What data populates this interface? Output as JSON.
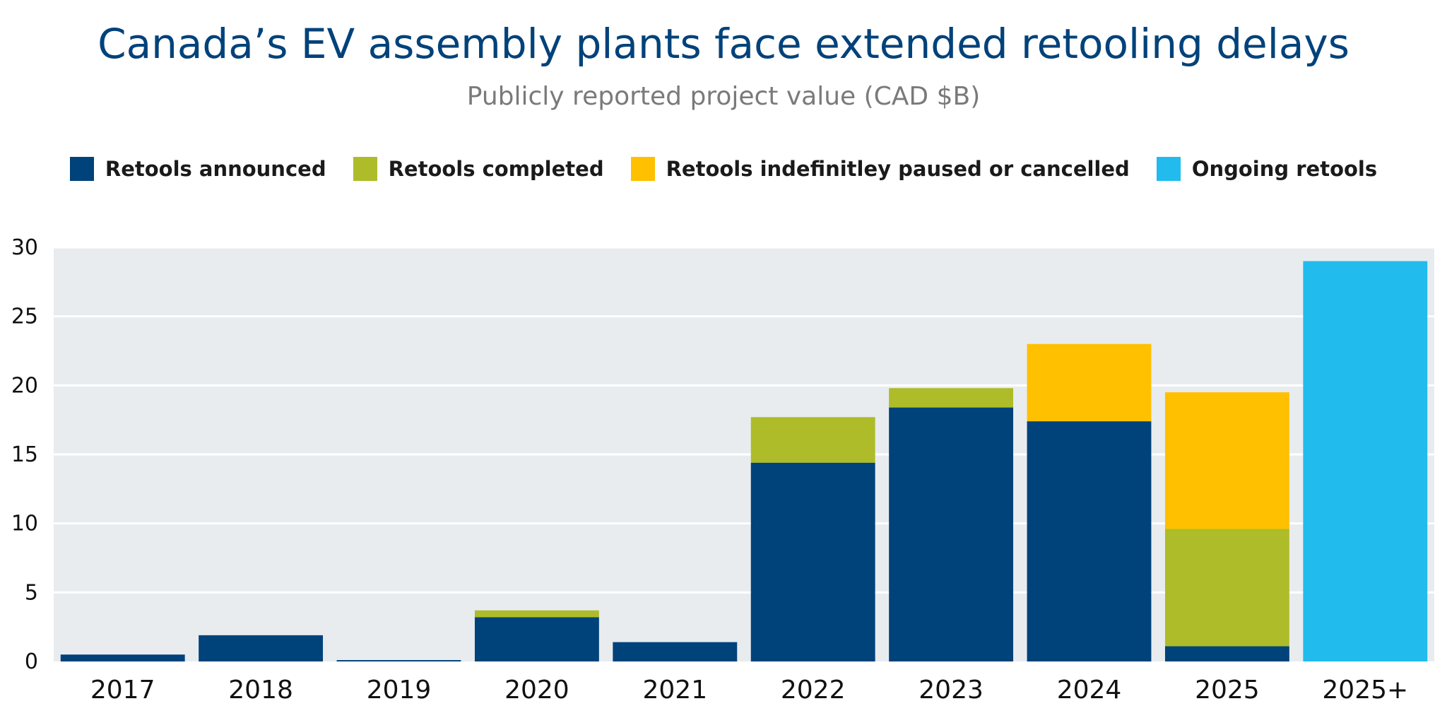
{
  "chart_data": {
    "type": "bar",
    "stacked": true,
    "title": "Canada’s EV assembly plants face extended retooling delays",
    "subtitle": "Publicly reported project value (CAD $B)",
    "xlabel": "",
    "ylabel": "",
    "ylim": [
      0,
      30
    ],
    "yticks": [
      0,
      5,
      10,
      15,
      20,
      25,
      30
    ],
    "grid": true,
    "legend_position": "top",
    "categories": [
      "2017",
      "2018",
      "2019",
      "2020",
      "2021",
      "2022",
      "2023",
      "2024",
      "2025",
      "2025+"
    ],
    "series": [
      {
        "name": "Retools announced",
        "color": "#00427a",
        "values": [
          0.5,
          1.9,
          0.1,
          3.2,
          1.4,
          14.4,
          18.4,
          17.4,
          1.1,
          0
        ]
      },
      {
        "name": "Retools completed",
        "color": "#adbc28",
        "values": [
          0,
          0,
          0,
          0.5,
          0,
          3.3,
          1.4,
          0,
          8.5,
          0
        ]
      },
      {
        "name": "Retools indefinitley paused or cancelled",
        "color": "#ffc000",
        "values": [
          0,
          0,
          0,
          0,
          0,
          0,
          0,
          5.6,
          9.9,
          0
        ]
      },
      {
        "name": "Ongoing retools",
        "color": "#21bbed",
        "values": [
          0,
          0,
          0,
          0,
          0,
          0,
          0,
          0,
          0,
          29
        ]
      }
    ],
    "plot_background": "#e8ecef",
    "gridline_color": "#ffffff"
  }
}
